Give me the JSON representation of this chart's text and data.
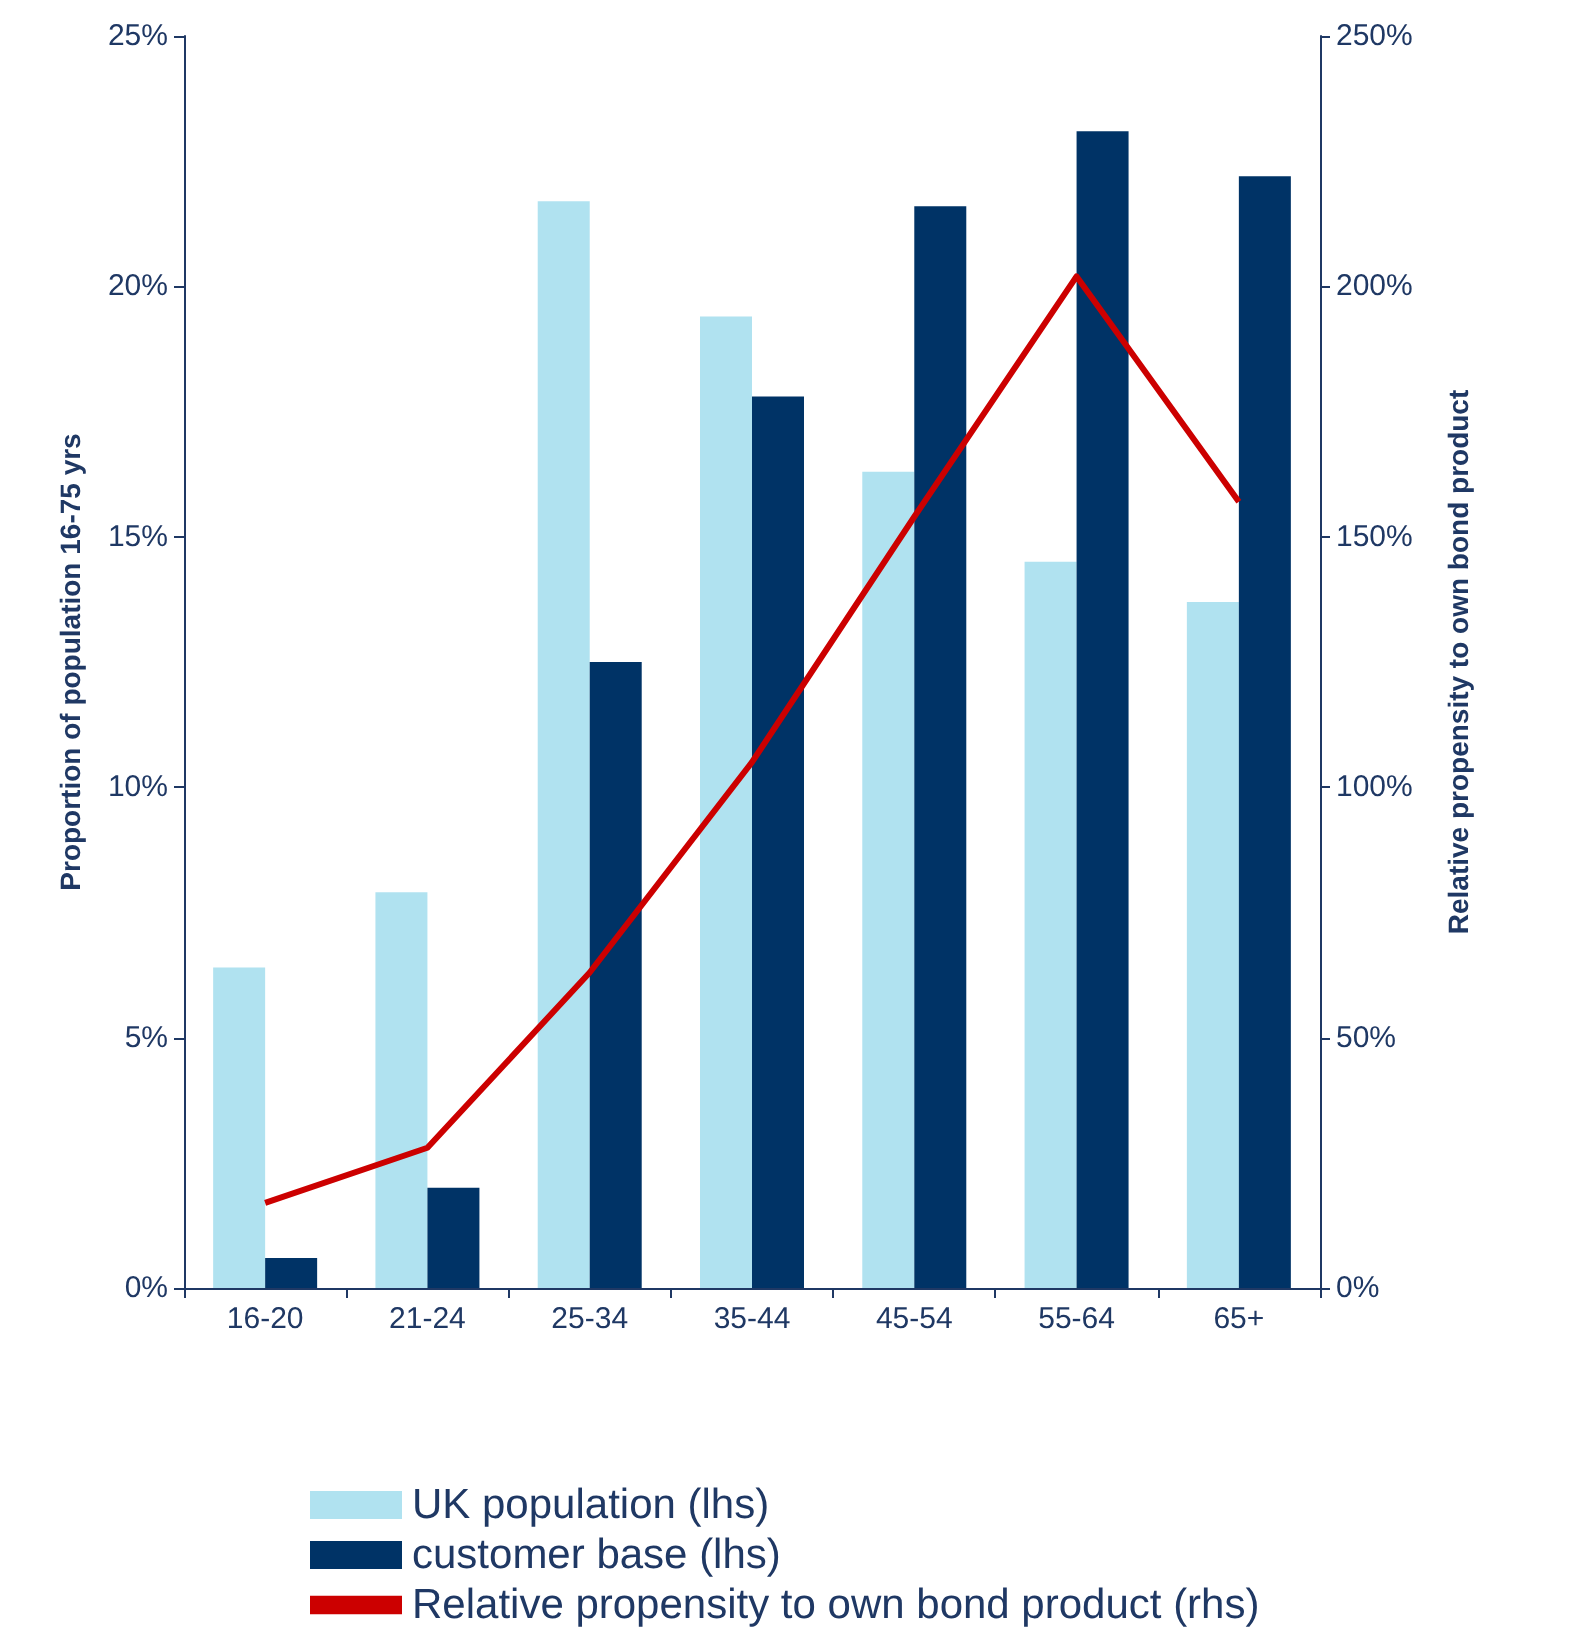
{
  "chart_data": {
    "type": "bar",
    "categories": [
      "16-20",
      "21-24",
      "25-34",
      "35-44",
      "45-54",
      "55-64",
      "65+"
    ],
    "ylabel": "Proportion of population 16-75 yrs",
    "y2label": "Relative propensity to own bond product",
    "series": [
      {
        "name": "UK population (lhs)",
        "color": "#b0e2f0",
        "values": [
          6.4,
          7.9,
          21.7,
          19.4,
          16.3,
          14.5,
          13.7
        ]
      },
      {
        "name": "customer base (lhs)",
        "color": "#003366",
        "values": [
          0.6,
          2.0,
          12.5,
          17.8,
          21.6,
          23.1,
          22.2
        ]
      },
      {
        "name": "Relative propensity to own bond product (rhs)",
        "type": "line",
        "axis": "y2",
        "color": "#cc0000",
        "values": [
          17,
          28,
          63,
          105,
          154,
          202,
          157
        ]
      }
    ],
    "ylim": [
      0,
      25
    ],
    "yticks": [
      {
        "value": 0,
        "label": "0%"
      },
      {
        "value": 5,
        "label": "5%"
      },
      {
        "value": 10,
        "label": "10%"
      },
      {
        "value": 15,
        "label": "15%"
      },
      {
        "value": 20,
        "label": "20%"
      },
      {
        "value": 25,
        "label": "25%"
      }
    ],
    "y2lim": [
      0,
      250
    ],
    "y2ticks": [
      {
        "value": 0,
        "label": "0%"
      },
      {
        "value": 50,
        "label": "50%"
      },
      {
        "value": 100,
        "label": "100%"
      },
      {
        "value": 150,
        "label": "150%"
      },
      {
        "value": 200,
        "label": "200%"
      },
      {
        "value": 250,
        "label": "250%"
      }
    ],
    "grid": false,
    "legend": "bottom",
    "marker": "none",
    "line_style": "solid"
  }
}
